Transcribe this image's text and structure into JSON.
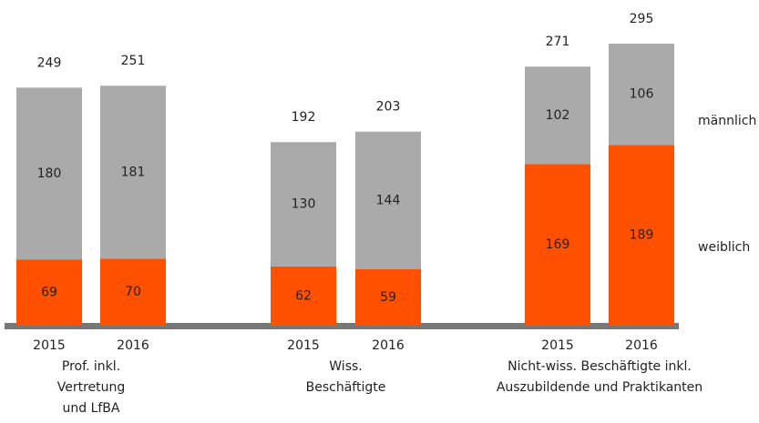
{
  "chart_data": {
    "type": "stacked-bar",
    "categories": [
      "2015",
      "2016",
      "2015",
      "2016",
      "2015",
      "2016"
    ],
    "groups": [
      [
        "Prof. inkl.",
        "Vertretung",
        "und LfBA"
      ],
      [
        "Wiss.",
        "Beschäftigte"
      ],
      [
        "Nicht-wiss. Beschäftigte inkl.",
        "Auszubildende und Praktikanten"
      ]
    ],
    "series": [
      {
        "name": "weiblich",
        "color": "#ff5000",
        "values": [
          69,
          70,
          62,
          59,
          169,
          189
        ]
      },
      {
        "name": "männlich",
        "color": "#aaaaaa",
        "values": [
          180,
          181,
          130,
          144,
          102,
          106
        ]
      }
    ],
    "totals": [
      249,
      251,
      192,
      203,
      271,
      295
    ]
  }
}
